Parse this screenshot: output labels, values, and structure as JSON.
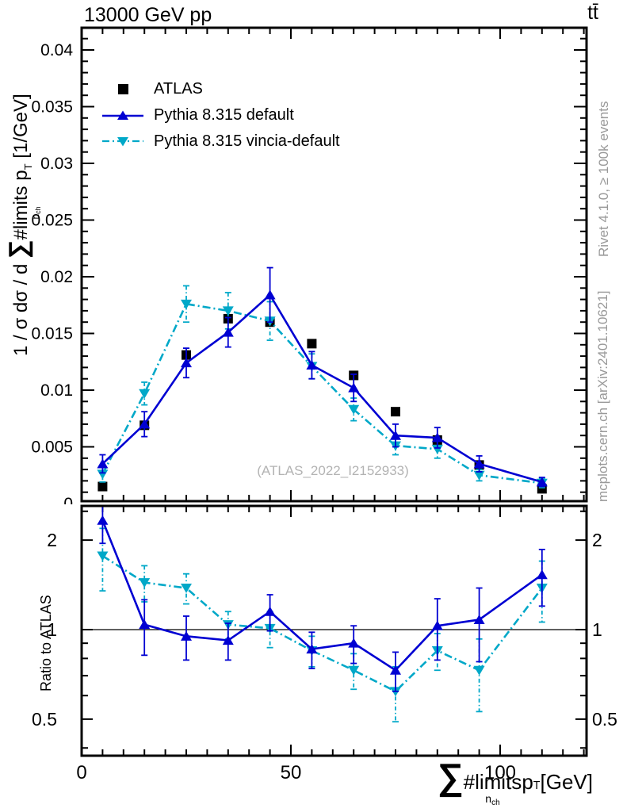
{
  "title": "13000 GeV pp",
  "process_label": "tt̄",
  "watermark": "(ATLAS_2022_I2152933)",
  "rivet_note": "Rivet 4.1.0, ≥ 100k events",
  "mcplots_note": "mcplots.cern.ch [arXiv:2401.10621]",
  "ratio_ylabel": "Ratio to ATLAS",
  "ylabel": {
    "prefix": "1 / σ dσ / d ",
    "sum": "∑",
    "limits": "#limits",
    "sub_main": "n",
    "sub_sub": "ch",
    "var": " p",
    "var_sub": "T",
    "units": " [1/GeV]"
  },
  "xlabel": {
    "sum": "∑",
    "limits": "#limits",
    "sub_main": "n",
    "sub_sub": "ch",
    "var": " p",
    "var_sub": "T",
    "units": " [GeV]"
  },
  "legend": {
    "items": [
      {
        "label": "ATLAS",
        "marker": "square",
        "color_key": "atlas"
      },
      {
        "label": "Pythia 8.315 default",
        "marker": "triangle-up",
        "color_key": "pythia_default"
      },
      {
        "label": "Pythia 8.315 vincia-default",
        "marker": "triangle-down",
        "color_key": "pythia_vincia"
      }
    ]
  },
  "colors": {
    "atlas": "#000000",
    "pythia_default": "#0000d2",
    "pythia_vincia": "#00a8c8",
    "side_text": "#999999",
    "watermark": "#b3b3b3"
  },
  "chart_data": [
    {
      "type": "scatter",
      "panel": "main",
      "title": "13000 GeV pp",
      "xlabel": "∑#limits_{n_ch} p_T [GeV]",
      "ylabel": "1 / σ dσ / d ∑#limits_{n_ch} p_T [1/GeV]",
      "xlim": [
        0,
        120.6
      ],
      "ylim": [
        0,
        0.0419
      ],
      "grid": false,
      "legend_position": "top-left-inside",
      "x": [
        5,
        15,
        25,
        35,
        45,
        55,
        65,
        75,
        85,
        95,
        110
      ],
      "series": [
        {
          "name": "ATLAS",
          "marker": "square",
          "line": "none",
          "color_key": "atlas",
          "values": [
            0.0015,
            0.0069,
            0.0131,
            0.0163,
            0.016,
            0.0141,
            0.0113,
            0.0081,
            0.0056,
            0.0034,
            0.0013
          ],
          "errors": [
            0,
            0,
            0,
            0,
            0,
            0,
            0,
            0,
            0,
            0,
            0
          ]
        },
        {
          "name": "Pythia 8.315 vincia-default",
          "marker": "triangle-down",
          "line": "dashdot",
          "color_key": "pythia_vincia",
          "values": [
            0.0026,
            0.0097,
            0.0176,
            0.017,
            0.0161,
            0.0121,
            0.0083,
            0.0051,
            0.0048,
            0.0025,
            0.0018
          ],
          "errors": [
            0.0007,
            0.001,
            0.0016,
            0.0016,
            0.0017,
            0.0011,
            0.001,
            0.0008,
            0.0008,
            0.0005,
            0.0004
          ]
        },
        {
          "name": "Pythia 8.315 default",
          "marker": "triangle-up",
          "line": "solid",
          "color_key": "pythia_default",
          "values": [
            0.0035,
            0.007,
            0.0124,
            0.0151,
            0.0184,
            0.0122,
            0.0102,
            0.006,
            0.0058,
            0.0035,
            0.0019
          ],
          "errors": [
            0.0008,
            0.0011,
            0.0013,
            0.0013,
            0.0024,
            0.0012,
            0.0012,
            0.001,
            0.0009,
            0.0007,
            0.0004
          ]
        }
      ],
      "yticks": [
        {
          "v": 0.04,
          "label": "0.04"
        },
        {
          "v": 0.035,
          "label": "0.035"
        },
        {
          "v": 0.03,
          "label": "0.03"
        },
        {
          "v": 0.025,
          "label": "0.025"
        },
        {
          "v": 0.02,
          "label": "0.02"
        },
        {
          "v": 0.015,
          "label": "0.015"
        },
        {
          "v": 0.01,
          "label": "0.01"
        },
        {
          "v": 0.005,
          "label": "0.005"
        },
        {
          "v": 0,
          "label": "0"
        }
      ]
    },
    {
      "type": "line",
      "panel": "ratio",
      "ylabel": "Ratio to ATLAS",
      "yscale": "log",
      "ylim": [
        0.37,
        2.62
      ],
      "reference_line": 1,
      "x": [
        5,
        15,
        25,
        35,
        45,
        55,
        65,
        75,
        85,
        95,
        110
      ],
      "series": [
        {
          "name": "Pythia 8.315 vincia-default",
          "marker": "triangle-down",
          "line": "dashdot",
          "color_key": "pythia_vincia",
          "values": [
            1.77,
            1.44,
            1.38,
            1.04,
            1.01,
            0.85,
            0.73,
            0.62,
            0.85,
            0.73,
            1.38
          ],
          "errors": [
            0.42,
            0.2,
            0.16,
            0.11,
            0.14,
            0.1,
            0.1,
            0.13,
            0.12,
            0.2,
            0.32
          ]
        },
        {
          "name": "Pythia 8.315 default",
          "marker": "triangle-up",
          "line": "solid",
          "color_key": "pythia_default",
          "values": [
            2.33,
            1.04,
            0.95,
            0.92,
            1.15,
            0.86,
            0.9,
            0.73,
            1.03,
            1.08,
            1.53
          ],
          "errors": [
            0.38,
            0.22,
            0.16,
            0.13,
            0.16,
            0.12,
            0.13,
            0.11,
            0.24,
            0.3,
            0.33
          ]
        }
      ],
      "yticks": [
        {
          "v": 2,
          "label": "2"
        },
        {
          "v": 1,
          "label": "1"
        },
        {
          "v": 0.5,
          "label": "0.5"
        }
      ],
      "xticks": [
        {
          "v": 0,
          "label": "0"
        },
        {
          "v": 50,
          "label": "50"
        },
        {
          "v": 100,
          "label": "100"
        }
      ]
    }
  ]
}
